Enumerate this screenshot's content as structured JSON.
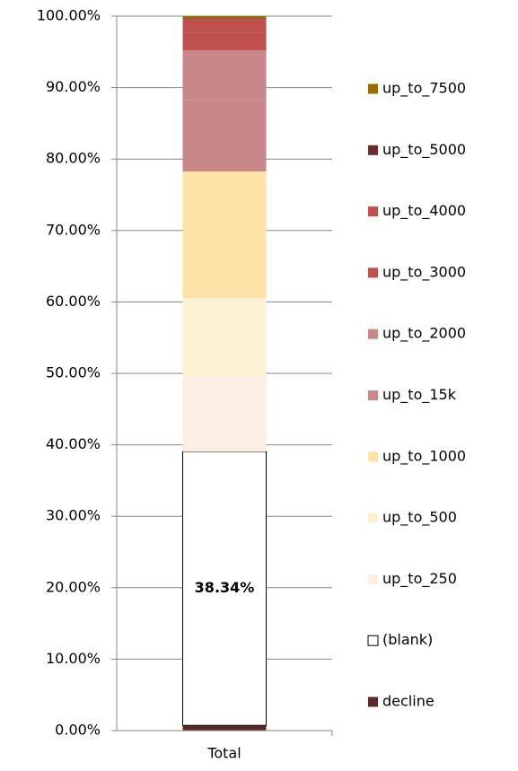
{
  "chart_data": {
    "type": "stacked_bar",
    "categories": [
      "Total"
    ],
    "series": [
      {
        "name": "decline",
        "color": "#5a2a27",
        "values": [
          0.73
        ]
      },
      {
        "name": "(blank)",
        "color": "#ffffff",
        "values": [
          38.34
        ],
        "value_labels": [
          "38.34%"
        ]
      },
      {
        "name": "up_to_250",
        "color": "#fdeee3",
        "values": [
          10.43
        ]
      },
      {
        "name": "up_to_500",
        "color": "#fef2d5",
        "values": [
          11.05
        ]
      },
      {
        "name": "up_to_1000",
        "color": "#fde3a7",
        "values": [
          17.72
        ]
      },
      {
        "name": "up_to_15k",
        "color": "#c9878a",
        "values": [
          10
        ]
      },
      {
        "name": "up_to_2000",
        "color": "#c9878a",
        "values": [
          6.96
        ]
      },
      {
        "name": "up_to_3000",
        "color": "#c0504d",
        "values": [
          2.5
        ]
      },
      {
        "name": "up_to_4000",
        "color": "#c0504d",
        "values": [
          1.87
        ]
      },
      {
        "name": "up_to_5000",
        "color": "#6b2d2d",
        "values": [
          0.1
        ]
      },
      {
        "name": "up_to_7500",
        "color": "#9c6b00",
        "values": [
          0.3
        ]
      }
    ],
    "ylim": [
      0,
      100
    ],
    "yticks": [
      {
        "value": 0,
        "label": "0.00%"
      },
      {
        "value": 10,
        "label": "10.00%"
      },
      {
        "value": 20,
        "label": "20.00%"
      },
      {
        "value": 30,
        "label": "30.00%"
      },
      {
        "value": 40,
        "label": "40.00%"
      },
      {
        "value": 50,
        "label": "50.00%"
      },
      {
        "value": 60,
        "label": "60.00%"
      },
      {
        "value": 70,
        "label": "70.00%"
      },
      {
        "value": 80,
        "label": "80.00%"
      },
      {
        "value": 90,
        "label": "90.00%"
      },
      {
        "value": 100,
        "label": "100.00%"
      }
    ],
    "grid": true,
    "legend": "right"
  }
}
